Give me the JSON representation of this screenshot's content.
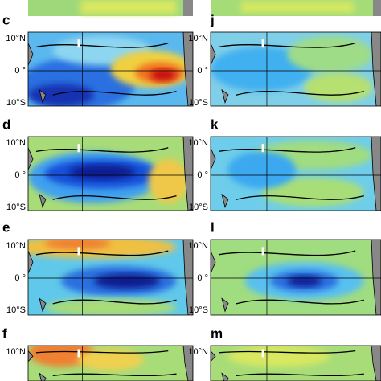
{
  "panels": [
    {
      "label": "c",
      "lat_labels": [
        "10°N",
        "0 °",
        "10°S"
      ]
    },
    {
      "label": "j",
      "lat_labels": [
        "10°N",
        "0 °",
        "10°S"
      ]
    },
    {
      "label": "d",
      "lat_labels": [
        "10°N",
        "0 °",
        "10°S"
      ]
    },
    {
      "label": "k",
      "lat_labels": [
        "10°N",
        "0 °",
        "10°S"
      ]
    },
    {
      "label": "e",
      "lat_labels": [
        "10°N",
        "0 °",
        "10°S"
      ]
    },
    {
      "label": "l",
      "lat_labels": [
        "10°N",
        "0 °",
        "10°S"
      ]
    },
    {
      "label": "f",
      "lat_labels": [
        "10°N"
      ]
    },
    {
      "label": "m",
      "lat_labels": [
        "10°N"
      ]
    }
  ]
}
